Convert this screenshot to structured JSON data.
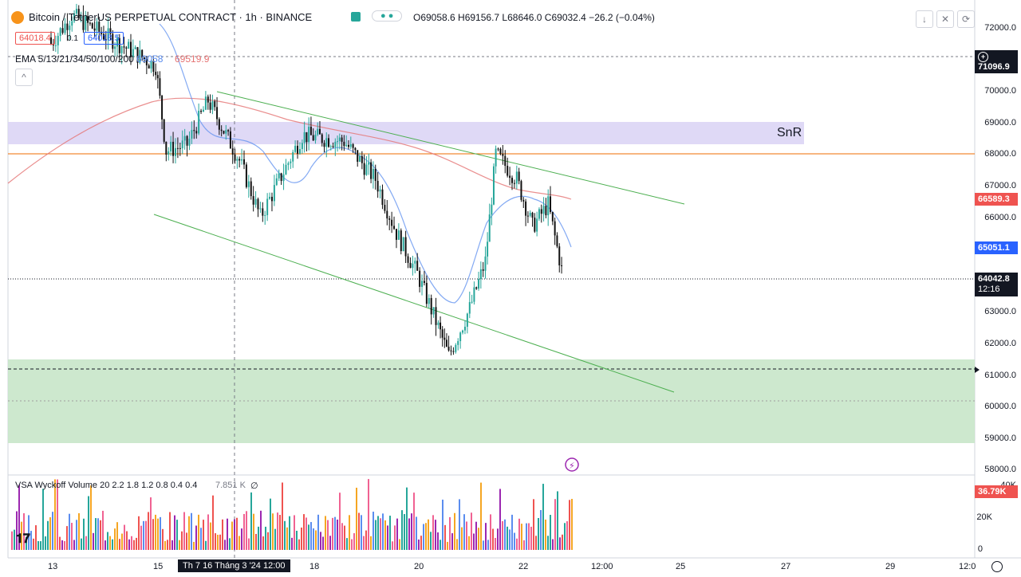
{
  "header": {
    "title": "Bitcoin / TetherUS PERPETUAL CONTRACT · 1h · BINANCE",
    "ohlc": "O69058.6 H69156.7 L68646.0 C69032.4 −26.2 (−0.04%)",
    "sell_price": "64018.4",
    "spread": "0.1",
    "buy_price": "64018.5",
    "ema_label": "EMA 5/13/21/34/50/100/200",
    "ema_value_blue": "69058",
    "ema_value_red": "69519.9",
    "collapse_symbol": "^"
  },
  "toolbar": {
    "down_icon": "↓",
    "maximize_icon": "✕",
    "settings_icon": "⟳"
  },
  "annotations": {
    "snr_label": "SnR"
  },
  "volume_pane": {
    "label": "VSA Wyckoff Volume 20 2.2 1.8 1.2 0.8 0.4 0.4",
    "value": "7.851 K",
    "extra": "∅",
    "axis_labels": [
      "40K",
      "20K",
      "0"
    ],
    "current_volume": "36.79K"
  },
  "price_axis": {
    "labels": [
      "72000.0",
      "71000.0",
      "70000.0",
      "69000.0",
      "68000.0",
      "67000.0",
      "66000.0",
      "65000.0",
      "64000.0",
      "63000.0",
      "62000.0",
      "61000.0",
      "60000.0",
      "59000.0",
      "58000.0"
    ],
    "alert_price": "71096.9",
    "red_marker": "66589.3",
    "blue_marker": "65051.1",
    "last_price": "64042.8",
    "countdown": "12:16"
  },
  "time_axis": {
    "labels": [
      "13",
      "15",
      "18",
      "20",
      "22",
      "12:00",
      "25",
      "27",
      "29",
      "12:0"
    ],
    "crosshair_label": "Th 7 16 Tháng 3 '24   12:00"
  },
  "colors": {
    "up": "#26a69a",
    "down": "#111111",
    "snr_zone": "#d9d2f5",
    "demand_zone": "#c8e6c9",
    "channel": "#4caf50",
    "ema_blue": "#5b8def",
    "ema_red": "#e57373",
    "hline": "#ef6c00"
  },
  "chart_data": {
    "type": "candlestick",
    "symbol": "BTCUSDT.P",
    "timeframe": "1h",
    "ylim": [
      58000,
      72500
    ],
    "close_path": [
      {
        "x": "13",
        "y": 71500
      },
      {
        "x": "13.4",
        "y": 72400
      },
      {
        "x": "15",
        "y": 70800
      },
      {
        "x": "15.2",
        "y": 68100
      },
      {
        "x": "15.6",
        "y": 68300
      },
      {
        "x": "16",
        "y": 69700
      },
      {
        "x": "16.6",
        "y": 67800
      },
      {
        "x": "17",
        "y": 66000
      },
      {
        "x": "17.4",
        "y": 67300
      },
      {
        "x": "17.8",
        "y": 68600
      },
      {
        "x": "18.6",
        "y": 68400
      },
      {
        "x": "19.2",
        "y": 67200
      },
      {
        "x": "19.6",
        "y": 65500
      },
      {
        "x": "20",
        "y": 64200
      },
      {
        "x": "20.4",
        "y": 62500
      },
      {
        "x": "20.6",
        "y": 61600
      },
      {
        "x": "21",
        "y": 63100
      },
      {
        "x": "21.3",
        "y": 64600
      },
      {
        "x": "21.5",
        "y": 68000
      },
      {
        "x": "21.9",
        "y": 67200
      },
      {
        "x": "22.2",
        "y": 65700
      },
      {
        "x": "22.5",
        "y": 66400
      },
      {
        "x": "22.8",
        "y": 64000
      }
    ],
    "snr_zone": [
      68400,
      69050
    ],
    "demand_zone": [
      58800,
      61500
    ],
    "horizontal_line": 68000,
    "alert_level": 71096.9,
    "last_price": 64042.8,
    "dotted_level": 61200,
    "channel_upper": [
      {
        "x": "16.2",
        "y": 69900
      },
      {
        "x": "24.6",
        "y": 66400
      }
    ],
    "channel_lower": [
      {
        "x": "15",
        "y": 66100
      },
      {
        "x": "24.4",
        "y": 60500
      }
    ],
    "ema_values": {
      "blue": 65051.1,
      "red": 66589.3
    },
    "volume_last": 36790
  }
}
